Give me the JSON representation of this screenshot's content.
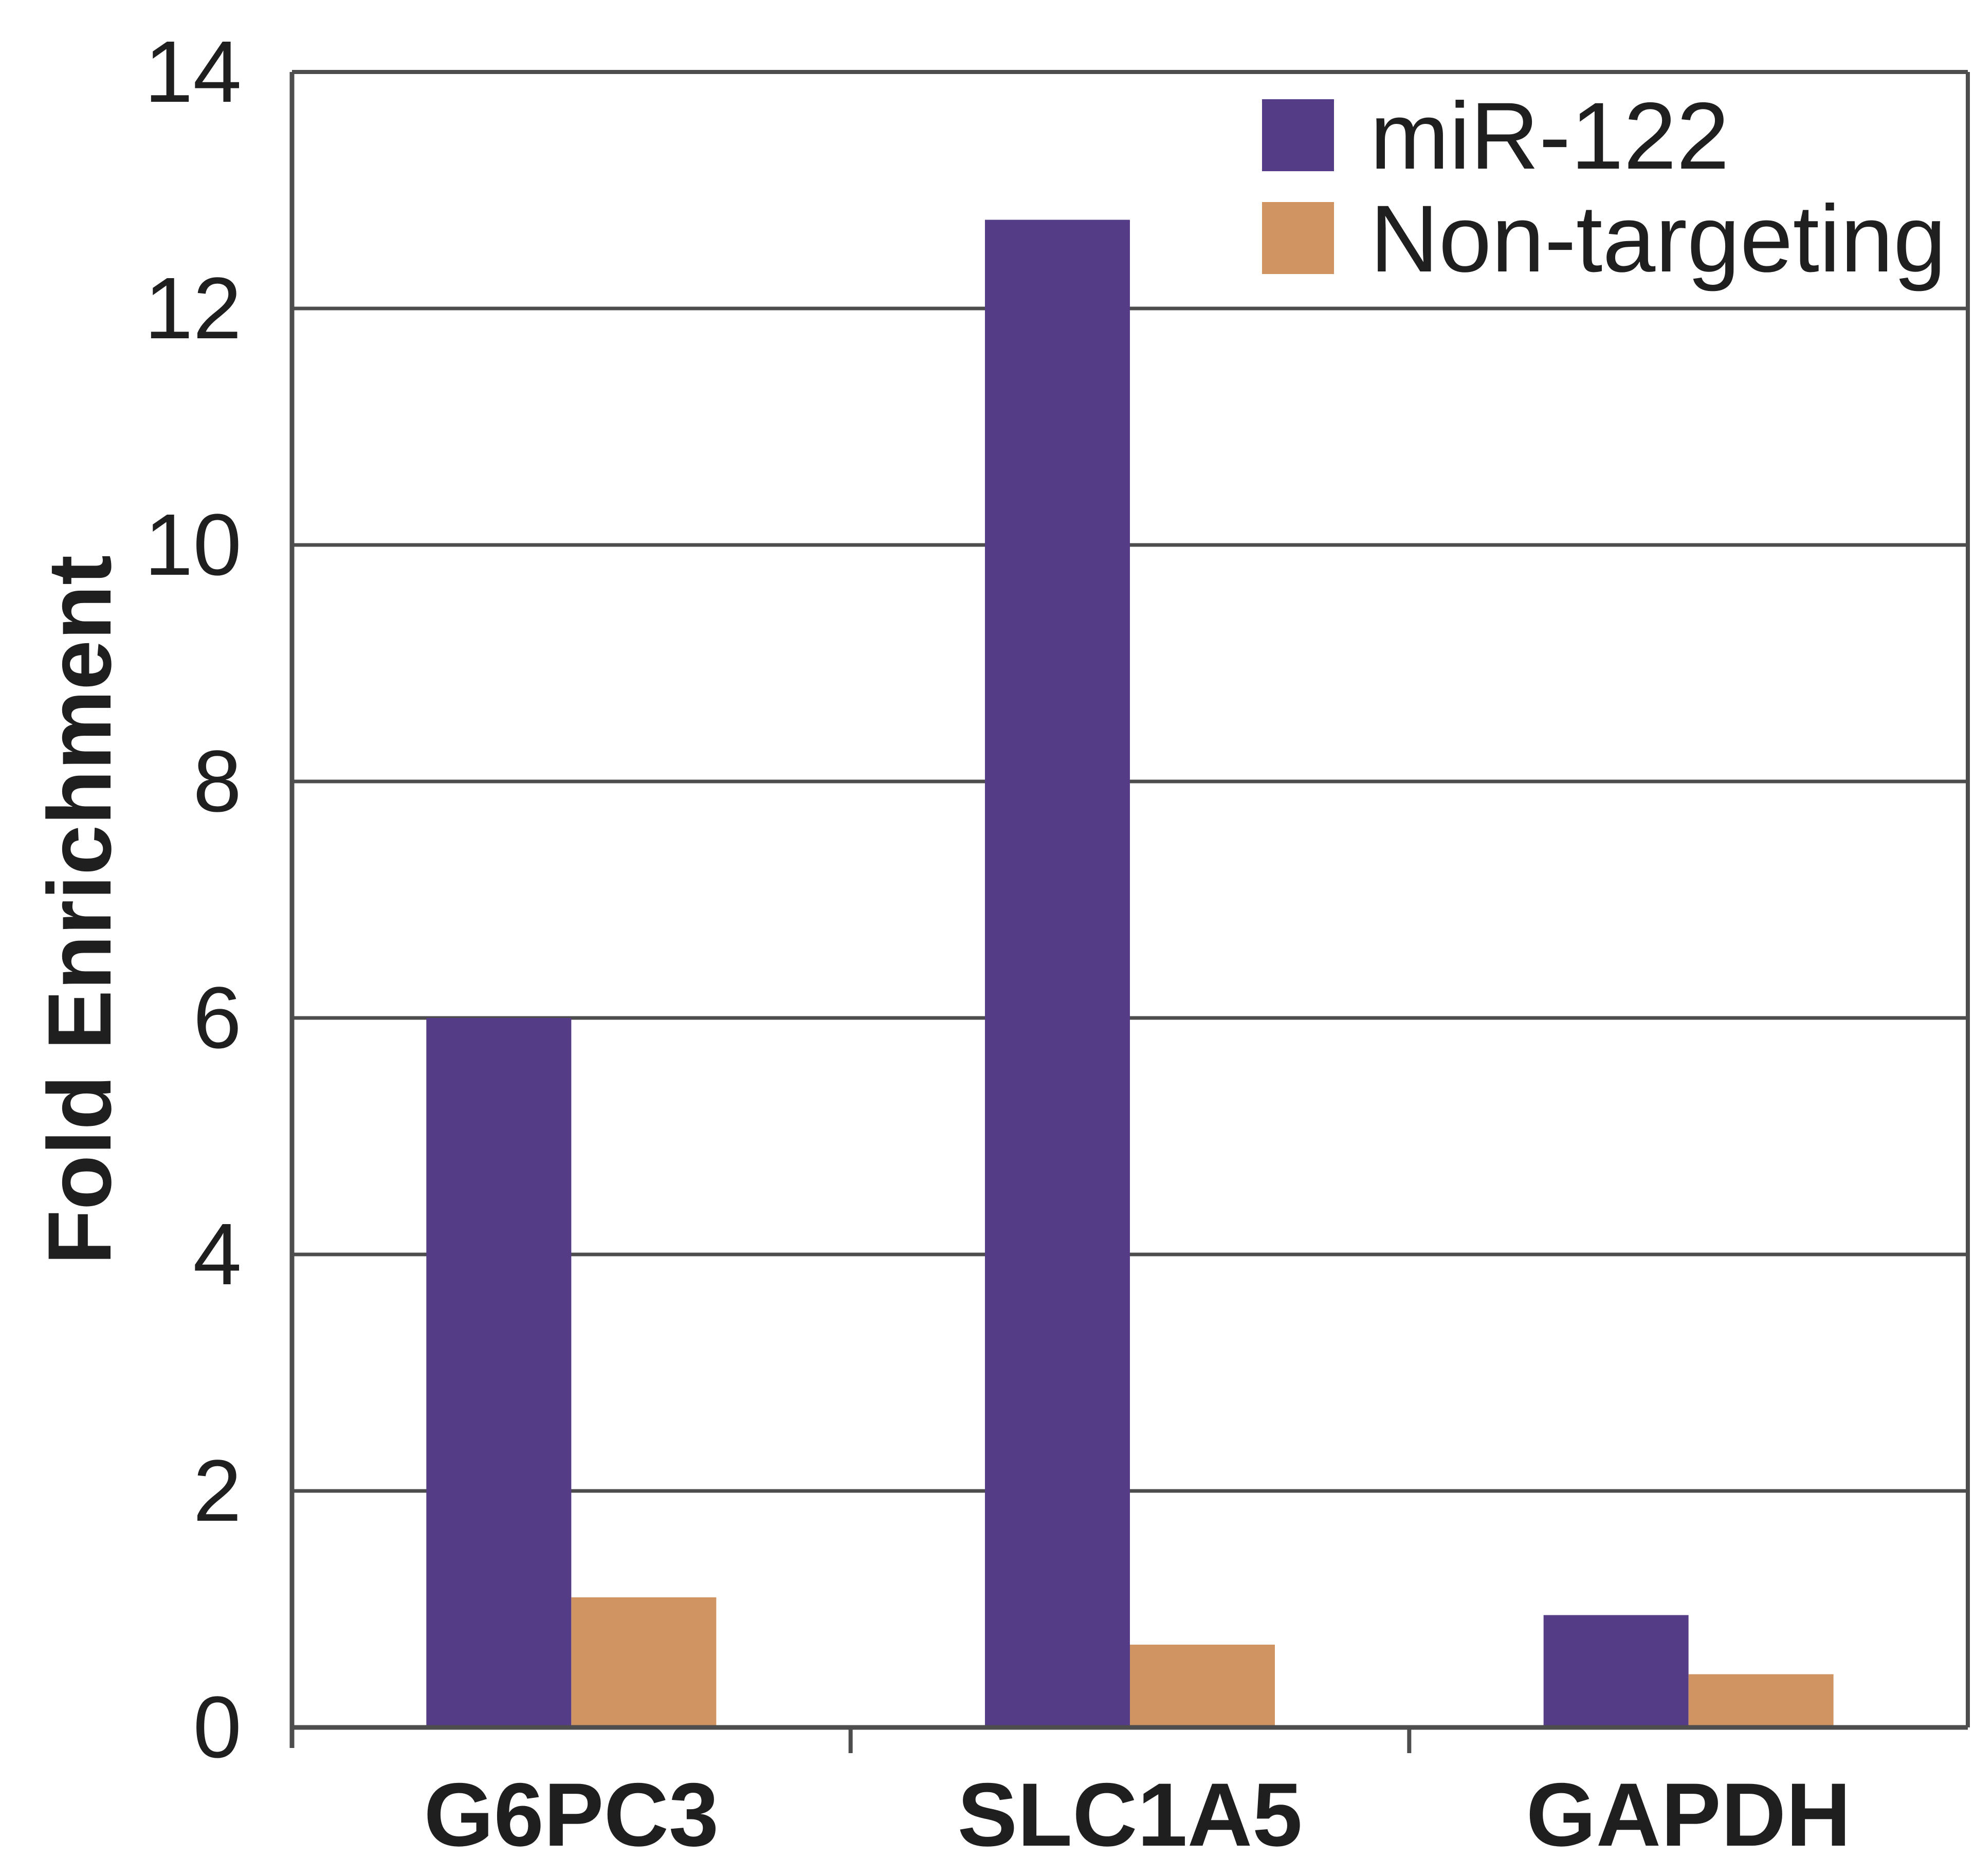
{
  "chart_data": {
    "type": "bar",
    "title": "",
    "xlabel": "",
    "ylabel": "Fold Enrichment",
    "ylim": [
      0,
      14
    ],
    "yticks": [
      0,
      2,
      4,
      6,
      8,
      10,
      12,
      14
    ],
    "categories": [
      "G6PC3",
      "SLC1A5",
      "GAPDH"
    ],
    "series": [
      {
        "name": "miR-122",
        "color": "#553c86",
        "values": [
          6.0,
          12.75,
          0.95
        ]
      },
      {
        "name": "Non-targeting",
        "color": "#cf9461",
        "values": [
          1.1,
          0.7,
          0.45
        ]
      }
    ],
    "grid": true,
    "legend_position": "top-right"
  }
}
